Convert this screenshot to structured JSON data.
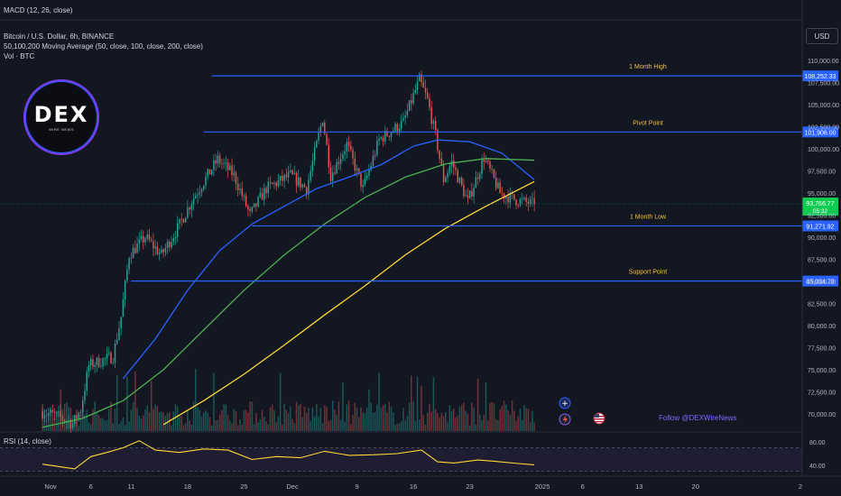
{
  "header": {
    "macd_label": "MACD (12, 26, close)",
    "symbol_line": "Bitcoin / U.S. Dollar, 6h, BINANCE",
    "ma_line": "50,100,200 Moving Average (50, close, 100, close, 200, close)",
    "vol_line": "Vol · BTC"
  },
  "currency_button": "USD",
  "branding": {
    "logo_text": "DEX",
    "logo_subtext": "WIRE NEWS",
    "follow_text": "Follow @DEXWireNews"
  },
  "colors": {
    "background": "#131722",
    "up": "#26a69a",
    "down": "#ef5350",
    "level_line": "#2962ff",
    "level_text": "#f0c040",
    "ma50": "#2962ff",
    "ma100": "#4caf50",
    "ma200": "#fdd835",
    "rsi": "#fdd835",
    "current_price_tag": "#0ecc52"
  },
  "chart_data": [
    {
      "type": "candlestick",
      "title": "Bitcoin / U.S. Dollar, 6h, BINANCE",
      "x_tick_labels": [
        "Nov",
        "6",
        "11",
        "18",
        "25",
        "Dec",
        "9",
        "16",
        "23",
        "2025",
        "6",
        "13",
        "20",
        "2"
      ],
      "y_tick_labels": [
        "110,000.00",
        "107,500.00",
        "105,000.00",
        "102,500.00",
        "100,000.00",
        "97,500.00",
        "95,000.00",
        "92,500.00",
        "90,000.00",
        "87,500.00",
        "85,000.00",
        "82,500.00",
        "80,000.00",
        "77,500.00",
        "75,000.00",
        "72,500.00",
        "70,000.00"
      ],
      "ylim": [
        69000,
        111500
      ],
      "price_path_anchors": [
        {
          "date": "2024-10-31",
          "price": 70300
        },
        {
          "date": "2024-11-02",
          "price": 69800
        },
        {
          "date": "2024-11-04",
          "price": 68900
        },
        {
          "date": "2024-11-05",
          "price": 70500
        },
        {
          "date": "2024-11-06",
          "price": 75500
        },
        {
          "date": "2024-11-09",
          "price": 76500
        },
        {
          "date": "2024-11-10",
          "price": 81000
        },
        {
          "date": "2024-11-11",
          "price": 88000
        },
        {
          "date": "2024-11-13",
          "price": 90000
        },
        {
          "date": "2024-11-15",
          "price": 88000
        },
        {
          "date": "2024-11-17",
          "price": 91000
        },
        {
          "date": "2024-11-19",
          "price": 94500
        },
        {
          "date": "2024-11-22",
          "price": 98800
        },
        {
          "date": "2024-11-24",
          "price": 97000
        },
        {
          "date": "2024-11-26",
          "price": 92500
        },
        {
          "date": "2024-11-28",
          "price": 95500
        },
        {
          "date": "2024-12-01",
          "price": 97000
        },
        {
          "date": "2024-12-03",
          "price": 95500
        },
        {
          "date": "2024-12-05",
          "price": 103500
        },
        {
          "date": "2024-12-06",
          "price": 97000
        },
        {
          "date": "2024-12-08",
          "price": 100500
        },
        {
          "date": "2024-12-10",
          "price": 95500
        },
        {
          "date": "2024-12-12",
          "price": 101000
        },
        {
          "date": "2024-12-15",
          "price": 103000
        },
        {
          "date": "2024-12-17",
          "price": 107800
        },
        {
          "date": "2024-12-18",
          "price": 105500
        },
        {
          "date": "2024-12-19",
          "price": 101500
        },
        {
          "date": "2024-12-20",
          "price": 96500
        },
        {
          "date": "2024-12-21",
          "price": 98500
        },
        {
          "date": "2024-12-23",
          "price": 94000
        },
        {
          "date": "2024-12-25",
          "price": 99000
        },
        {
          "date": "2024-12-27",
          "price": 95000
        },
        {
          "date": "2024-12-29",
          "price": 94200
        },
        {
          "date": "2024-12-31",
          "price": 93766.77
        }
      ],
      "moving_averages": [
        {
          "name": "MA 50",
          "color": "#2962ff",
          "points": [
            {
              "date": "2024-11-10",
              "value": 74000
            },
            {
              "date": "2024-11-14",
              "value": 78500
            },
            {
              "date": "2024-11-18",
              "value": 84000
            },
            {
              "date": "2024-11-22",
              "value": 88500
            },
            {
              "date": "2024-11-26",
              "value": 91500
            },
            {
              "date": "2024-11-30",
              "value": 93500
            },
            {
              "date": "2024-12-04",
              "value": 95500
            },
            {
              "date": "2024-12-08",
              "value": 96800
            },
            {
              "date": "2024-12-12",
              "value": 98200
            },
            {
              "date": "2024-12-16",
              "value": 100300
            },
            {
              "date": "2024-12-19",
              "value": 101000
            },
            {
              "date": "2024-12-23",
              "value": 100800
            },
            {
              "date": "2024-12-27",
              "value": 99500
            },
            {
              "date": "2024-12-31",
              "value": 96500
            }
          ]
        },
        {
          "name": "MA 100",
          "color": "#4caf50",
          "points": [
            {
              "date": "2024-10-31",
              "value": 68500
            },
            {
              "date": "2024-11-05",
              "value": 69500
            },
            {
              "date": "2024-11-10",
              "value": 71500
            },
            {
              "date": "2024-11-15",
              "value": 75000
            },
            {
              "date": "2024-11-20",
              "value": 79500
            },
            {
              "date": "2024-11-25",
              "value": 84000
            },
            {
              "date": "2024-11-30",
              "value": 88000
            },
            {
              "date": "2024-12-05",
              "value": 91500
            },
            {
              "date": "2024-12-10",
              "value": 94500
            },
            {
              "date": "2024-12-15",
              "value": 96800
            },
            {
              "date": "2024-12-20",
              "value": 98300
            },
            {
              "date": "2024-12-25",
              "value": 98900
            },
            {
              "date": "2024-12-31",
              "value": 98700
            }
          ]
        },
        {
          "name": "MA 200",
          "color": "#fdd835",
          "points": [
            {
              "date": "2024-11-15",
              "value": 68800
            },
            {
              "date": "2024-11-20",
              "value": 71500
            },
            {
              "date": "2024-11-25",
              "value": 74500
            },
            {
              "date": "2024-11-30",
              "value": 77800
            },
            {
              "date": "2024-12-05",
              "value": 81200
            },
            {
              "date": "2024-12-10",
              "value": 84500
            },
            {
              "date": "2024-12-15",
              "value": 88000
            },
            {
              "date": "2024-12-20",
              "value": 91000
            },
            {
              "date": "2024-12-25",
              "value": 93500
            },
            {
              "date": "2024-12-31",
              "value": 96300
            }
          ]
        }
      ],
      "levels": [
        {
          "label": "1 Month High",
          "price_label": "108,252.33",
          "value": 108252.33,
          "start_date": "2024-11-21"
        },
        {
          "label": "Pivot Point",
          "price_label": "101,906.00",
          "value": 101906.0,
          "start_date": "2024-11-20"
        },
        {
          "label": "1 Month Low",
          "price_label": "91,271.92",
          "value": 91271.92,
          "start_date": "2024-11-26"
        },
        {
          "label": "Support Point",
          "price_label": "85,034.70",
          "value": 85034.7,
          "start_date": "2024-11-11"
        }
      ],
      "current_price": {
        "price_label": "93,766.77",
        "countdown_label": "05:32",
        "value": 93766.77
      }
    },
    {
      "type": "line",
      "title": "RSI (14, close)",
      "y_tick_labels": [
        "80.00",
        "40.00"
      ],
      "ylim": [
        25,
        90
      ],
      "bands": [
        30,
        70
      ],
      "series": [
        {
          "name": "RSI",
          "points": [
            {
              "date": "2024-10-31",
              "value": 42
            },
            {
              "date": "2024-11-02",
              "value": 38
            },
            {
              "date": "2024-11-04",
              "value": 34
            },
            {
              "date": "2024-11-06",
              "value": 55
            },
            {
              "date": "2024-11-08",
              "value": 62
            },
            {
              "date": "2024-11-10",
              "value": 70
            },
            {
              "date": "2024-11-12",
              "value": 82
            },
            {
              "date": "2024-11-14",
              "value": 66
            },
            {
              "date": "2024-11-17",
              "value": 62
            },
            {
              "date": "2024-11-20",
              "value": 68
            },
            {
              "date": "2024-11-23",
              "value": 66
            },
            {
              "date": "2024-11-26",
              "value": 50
            },
            {
              "date": "2024-11-29",
              "value": 55
            },
            {
              "date": "2024-12-02",
              "value": 53
            },
            {
              "date": "2024-12-05",
              "value": 64
            },
            {
              "date": "2024-12-08",
              "value": 57
            },
            {
              "date": "2024-12-11",
              "value": 58
            },
            {
              "date": "2024-12-14",
              "value": 60
            },
            {
              "date": "2024-12-17",
              "value": 66
            },
            {
              "date": "2024-12-19",
              "value": 46
            },
            {
              "date": "2024-12-21",
              "value": 44
            },
            {
              "date": "2024-12-24",
              "value": 49
            },
            {
              "date": "2024-12-26",
              "value": 47
            },
            {
              "date": "2024-12-29",
              "value": 43
            },
            {
              "date": "2024-12-31",
              "value": 41
            }
          ]
        }
      ]
    }
  ]
}
